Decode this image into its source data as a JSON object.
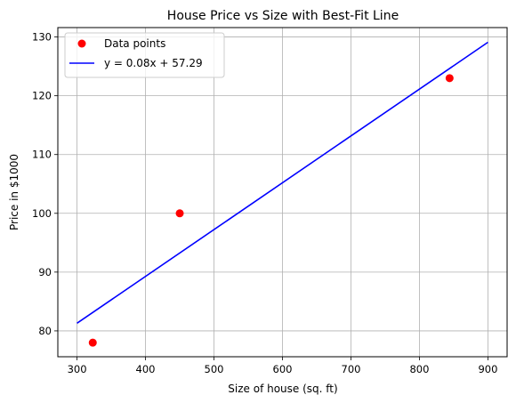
{
  "chart_data": {
    "type": "scatter",
    "title": "House Price vs Size with Best-Fit Line",
    "xlabel": "Size of house (sq. ft)",
    "ylabel": "Price in $1000",
    "xlim": [
      272,
      928
    ],
    "ylim": [
      75.6,
      131.6
    ],
    "xticks": [
      300,
      400,
      500,
      600,
      700,
      800,
      900
    ],
    "yticks": [
      80,
      90,
      100,
      110,
      120,
      130
    ],
    "grid": true,
    "legend_position": "top-left",
    "series": [
      {
        "name": "Data points",
        "kind": "scatter",
        "color": "#ff0000",
        "x": [
          323,
          450,
          844
        ],
        "y": [
          78,
          100,
          123
        ]
      },
      {
        "name": "y = 0.08x + 57.29",
        "kind": "line",
        "color": "#0000ff",
        "x": [
          300,
          900
        ],
        "y": [
          81.3,
          129.1
        ]
      }
    ]
  }
}
